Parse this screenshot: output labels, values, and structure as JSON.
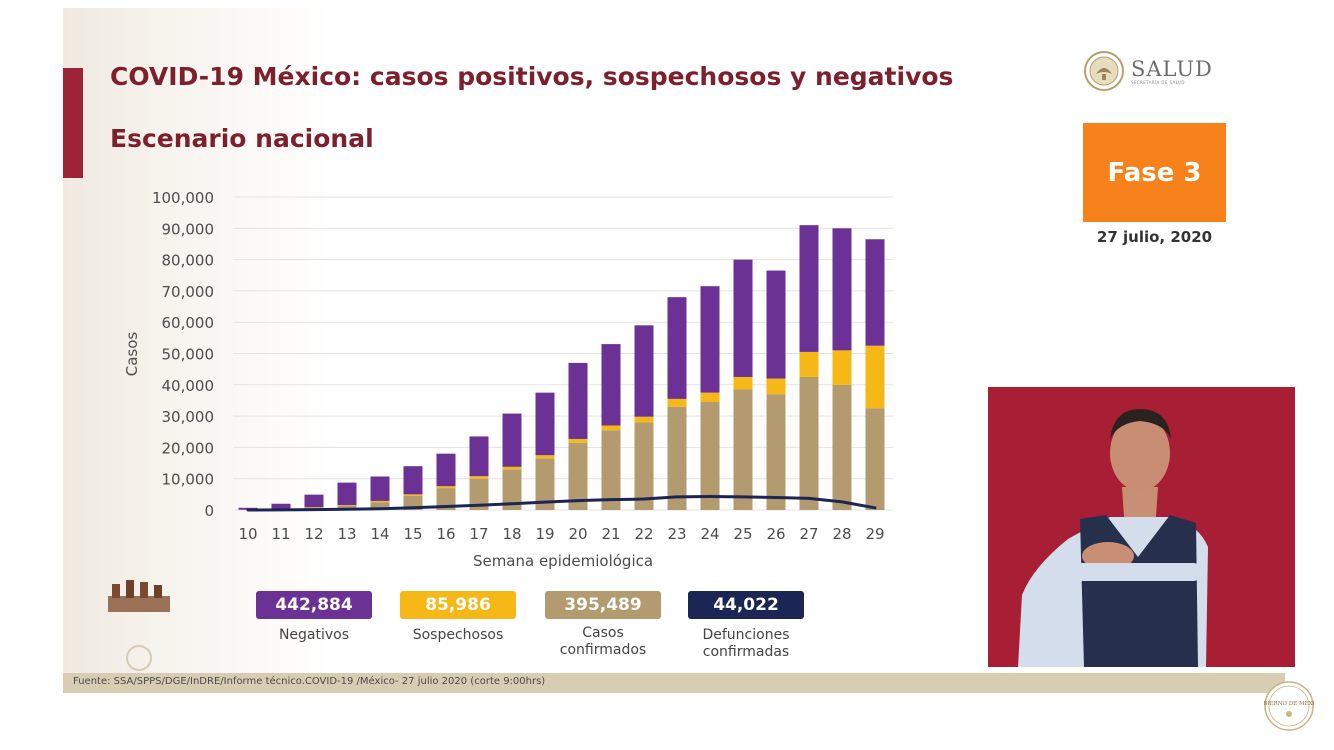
{
  "header": {
    "title": "COVID-19 México: casos positivos, sospechosos y negativos",
    "subtitle": "Escenario nacional",
    "brand": "SALUD",
    "brand_sub": "SECRETARÍA DE SALUD",
    "phase": "Fase 3",
    "date": "27 julio, 2020"
  },
  "colors": {
    "title": "#7d1f2c",
    "accent": "#9c2436",
    "negativos": "#6b3194",
    "sospechosos": "#f6b817",
    "confirmados": "#b49a6f",
    "defunciones": "#1c2655",
    "phase_bg": "#f7821b",
    "grid": "#e3e3e3",
    "text": "#4d4d4d"
  },
  "chart_data": {
    "type": "bar",
    "stacked": true,
    "xlabel": "Semana epidemiológica",
    "ylabel": "Casos",
    "ylim": [
      0,
      100000
    ],
    "yticks": [
      0,
      10000,
      20000,
      30000,
      40000,
      50000,
      60000,
      70000,
      80000,
      90000,
      100000
    ],
    "ytick_labels": [
      "0",
      "10,000",
      "20,000",
      "30,000",
      "40,000",
      "50,000",
      "60,000",
      "70,000",
      "80,000",
      "90,000",
      "100,000"
    ],
    "grid": true,
    "categories": [
      "10",
      "11",
      "12",
      "13",
      "14",
      "15",
      "16",
      "17",
      "18",
      "19",
      "20",
      "21",
      "22",
      "23",
      "24",
      "25",
      "26",
      "27",
      "28",
      "29"
    ],
    "series": [
      {
        "key": "confirmados",
        "values": [
          100,
          350,
          800,
          1300,
          2500,
          4500,
          7000,
          10000,
          13000,
          16500,
          21500,
          25500,
          28000,
          33000,
          34500,
          38500,
          37000,
          42500,
          40000,
          32500
        ]
      },
      {
        "key": "sospechosos",
        "values": [
          20,
          50,
          150,
          250,
          400,
          500,
          600,
          800,
          800,
          1000,
          1200,
          1500,
          1800,
          2500,
          3000,
          4000,
          5000,
          8000,
          11000,
          20000
        ]
      },
      {
        "key": "negativos",
        "values": [
          580,
          1600,
          3950,
          7200,
          7800,
          9000,
          10400,
          12700,
          17000,
          20000,
          24300,
          26000,
          29200,
          32500,
          34000,
          37500,
          34500,
          40500,
          39000,
          34000
        ]
      }
    ],
    "line": {
      "key": "defunciones",
      "values": [
        10,
        30,
        100,
        250,
        400,
        700,
        1100,
        1500,
        2000,
        2500,
        3000,
        3300,
        3500,
        4200,
        4300,
        4200,
        4000,
        3700,
        2600,
        700
      ]
    }
  },
  "summary": [
    {
      "key": "negativos",
      "value": "442,884",
      "label": "Negativos",
      "label2": ""
    },
    {
      "key": "sospechosos",
      "value": "85,986",
      "label": "Sospechosos",
      "label2": ""
    },
    {
      "key": "confirmados",
      "value": "395,489",
      "label": "Casos",
      "label2": "confirmados"
    },
    {
      "key": "defunciones",
      "value": "44,022",
      "label": "Defunciones",
      "label2": "confirmadas"
    }
  ],
  "footer": {
    "source": "Fuente: SSA/SPPS/DGE/InDRE/Informe técnico.COVID-19 /México- 27 julio 2020 (corte 9:00hrs)",
    "seal_text": "GOBIERNO DE MÉXICO"
  }
}
